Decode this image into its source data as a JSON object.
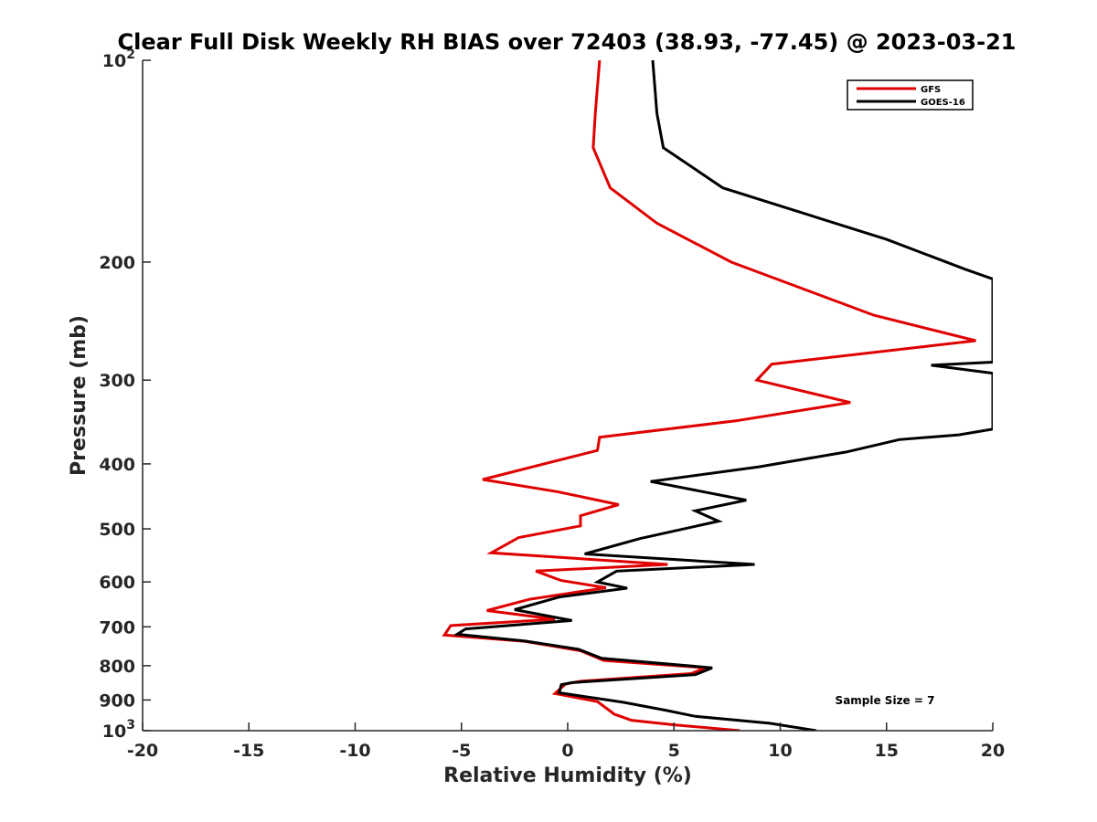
{
  "chart_data": {
    "type": "line",
    "title": "Clear Full Disk Weekly RH BIAS over 72403 (38.93, -77.45) @ 2023-03-21",
    "xlabel": "Relative Humidity (%)",
    "ylabel": "Pressure (mb)",
    "xlim": [
      -20,
      20
    ],
    "ylim": [
      100,
      1000
    ],
    "y_scale": "log",
    "y_reversed": true,
    "x_ticks": [
      -20,
      -15,
      -10,
      -5,
      0,
      5,
      10,
      15,
      20
    ],
    "x_tick_labels": [
      "-20",
      "-15",
      "-10",
      "-5",
      "0",
      "5",
      "10",
      "15",
      "20"
    ],
    "y_ticks": [
      100,
      200,
      300,
      400,
      500,
      600,
      700,
      800,
      900,
      1000
    ],
    "y_tick_labels": [
      {
        "base": "10",
        "exp": "2"
      },
      {
        "text": "200"
      },
      {
        "text": "300"
      },
      {
        "text": "400"
      },
      {
        "text": "500"
      },
      {
        "text": "600"
      },
      {
        "text": "700"
      },
      {
        "text": "800"
      },
      {
        "text": "900"
      },
      {
        "base": "10",
        "exp": "3"
      }
    ],
    "grid": false,
    "legend_position": "top-right",
    "annotation": "Sample Size = 7",
    "series": [
      {
        "name": "GFS",
        "color": "#e00000",
        "points": [
          [
            1.5,
            100
          ],
          [
            1.3,
            120
          ],
          [
            1.2,
            135
          ],
          [
            2.0,
            155
          ],
          [
            4.2,
            175
          ],
          [
            7.7,
            200
          ],
          [
            14.4,
            240
          ],
          [
            19.2,
            262
          ],
          [
            9.6,
            284
          ],
          [
            8.9,
            300
          ],
          [
            13.3,
            324
          ],
          [
            7.9,
            345
          ],
          [
            1.5,
            365
          ],
          [
            1.4,
            382
          ],
          [
            -0.7,
            397
          ],
          [
            -4.0,
            422
          ],
          [
            -0.5,
            440
          ],
          [
            2.4,
            460
          ],
          [
            0.6,
            478
          ],
          [
            0.6,
            495
          ],
          [
            -2.3,
            515
          ],
          [
            -3.6,
            543
          ],
          [
            4.7,
            565
          ],
          [
            -1.5,
            578
          ],
          [
            -0.3,
            597
          ],
          [
            1.8,
            612
          ],
          [
            -1.8,
            637
          ],
          [
            -3.8,
            662
          ],
          [
            -0.6,
            682
          ],
          [
            -5.5,
            697
          ],
          [
            -5.8,
            720
          ],
          [
            -2.0,
            736
          ],
          [
            0.6,
            760
          ],
          [
            1.7,
            786
          ],
          [
            6.5,
            806
          ],
          [
            5.8,
            822
          ],
          [
            0.6,
            844
          ],
          [
            -0.1,
            852
          ],
          [
            -0.6,
            880
          ],
          [
            1.4,
            905
          ],
          [
            2.2,
            945
          ],
          [
            3.0,
            965
          ],
          [
            5.0,
            980
          ],
          [
            8.1,
            1000
          ]
        ]
      },
      {
        "name": "GOES-16",
        "color": "#000000",
        "points": [
          [
            4.0,
            100
          ],
          [
            4.2,
            120
          ],
          [
            4.5,
            135
          ],
          [
            7.3,
            155
          ],
          [
            15.0,
            185
          ],
          [
            18.7,
            205
          ],
          [
            20.0,
            212
          ],
          [
            20.0,
            282
          ],
          [
            17.1,
            285
          ],
          [
            20.0,
            293
          ],
          [
            20.0,
            355
          ],
          [
            18.4,
            362
          ],
          [
            15.6,
            368
          ],
          [
            13.1,
            384
          ],
          [
            9.0,
            404
          ],
          [
            3.9,
            425
          ],
          [
            8.4,
            453
          ],
          [
            6.0,
            470
          ],
          [
            7.1,
            487
          ],
          [
            3.4,
            517
          ],
          [
            0.8,
            545
          ],
          [
            8.8,
            565
          ],
          [
            2.3,
            578
          ],
          [
            1.4,
            600
          ],
          [
            2.8,
            613
          ],
          [
            -0.4,
            632
          ],
          [
            -2.5,
            660
          ],
          [
            0.2,
            685
          ],
          [
            -4.8,
            705
          ],
          [
            -5.2,
            718
          ],
          [
            -2.0,
            735
          ],
          [
            0.5,
            756
          ],
          [
            1.6,
            780
          ],
          [
            6.8,
            806
          ],
          [
            6.0,
            825
          ],
          [
            0.2,
            848
          ],
          [
            -0.3,
            854
          ],
          [
            -0.4,
            878
          ],
          [
            2.6,
            907
          ],
          [
            4.6,
            932
          ],
          [
            6.0,
            952
          ],
          [
            9.5,
            975
          ],
          [
            11.7,
            1000
          ]
        ]
      }
    ]
  }
}
